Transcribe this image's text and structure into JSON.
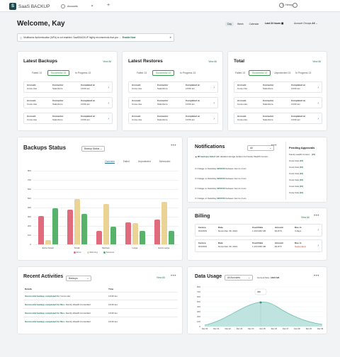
{
  "topbar": {
    "brand": "SaaS BACKUP",
    "logo_letter": "S",
    "tab": "Accounts",
    "tab_close": "×",
    "add_tab": "+",
    "user": "C. Henry"
  },
  "header": {
    "welcome": "Welcome, Kay",
    "range": [
      "Day",
      "Week",
      "Calendar"
    ],
    "range_active": "Day",
    "time": "Last 24 hours",
    "group_label": "Account Groups",
    "group_value": "All"
  },
  "alert": {
    "text": "Multifactor Authentication (MFA) is not enabled. SaaSBACKUP highly recommends that you ...",
    "link": "Enable Now"
  },
  "backups": {
    "title": "Latest Backups",
    "view_all": "View All",
    "tabs": [
      "Failed 13",
      "Successful 13",
      "In Progress 13"
    ],
    "rows": [
      {
        "a_label": "Account",
        "a_val": "Coca-cola",
        "c_label": "Connector",
        "c_val": "Salesforce",
        "t_label": "Completed at",
        "t_val": "10:00 am"
      },
      {
        "a_label": "Account",
        "a_val": "Coca-cola",
        "c_label": "Connector",
        "c_val": "Salesforce",
        "t_label": "Completed at",
        "t_val": "10:00 am"
      },
      {
        "a_label": "Account",
        "a_val": "Coca-cola",
        "c_label": "Connector",
        "c_val": "Salesforce",
        "t_label": "Completed at",
        "t_val": "10:00 am"
      }
    ]
  },
  "restores": {
    "title": "Latest Restores",
    "view_all": "View All",
    "tabs": [
      "Failed 13",
      "Successful 13",
      "In Progress 13"
    ],
    "rows": [
      {
        "a_label": "Account",
        "a_val": "Coca-cola",
        "c_label": "Connector",
        "c_val": "Salesforce",
        "t_label": "Completed at",
        "t_val": "10:00 am"
      },
      {
        "a_label": "Account",
        "a_val": "Coca-cola",
        "c_label": "Connector",
        "c_val": "Salesforce",
        "t_label": "Completed at",
        "t_val": "10:00 am"
      },
      {
        "a_label": "Account",
        "a_val": "Coca-cola",
        "c_label": "Connector",
        "c_val": "Salesforce",
        "t_label": "Completed at",
        "t_val": "10:00 am"
      }
    ]
  },
  "total": {
    "title": "Total",
    "view_all": "View All",
    "tabs": [
      "Failed 13",
      "Successful 13",
      "Unprotected 13",
      "In Progress 13"
    ],
    "rows": [
      {
        "a_label": "Account",
        "a_val": "Coca-cola",
        "c_label": "Connector",
        "c_val": "Salesforce",
        "t_label": "Completed at",
        "t_val": "10:00 am"
      },
      {
        "a_label": "Account",
        "a_val": "Coca-cola",
        "c_label": "Connector",
        "c_val": "Salesforce",
        "t_label": "Completed at",
        "t_val": "10:00 am"
      },
      {
        "a_label": "Account",
        "a_val": "Coca-cola",
        "c_label": "Connector",
        "c_val": "Salesforce",
        "t_label": "Completed at",
        "t_val": "10:00 am"
      }
    ]
  },
  "status": {
    "title": "Backups Status",
    "select": "Backup Status",
    "tabs": [
      "Overview",
      "Failed",
      "Unprotected",
      "Scheduled"
    ],
    "more": "•••"
  },
  "chart_data": {
    "type": "bar",
    "categories": [
      "Extra Small",
      "Small",
      "Medium",
      "Large",
      "Extra Large"
    ],
    "series": [
      {
        "name": "Error",
        "color": "#e06b7d",
        "values": [
          310,
          380,
          145,
          235,
          270
        ]
      },
      {
        "name": "Warning",
        "color": "#ead394",
        "values": [
          50,
          490,
          440,
          230,
          460
        ]
      },
      {
        "name": "Success",
        "color": "#58b36a",
        "values": [
          395,
          330,
          190,
          150,
          145
        ]
      }
    ],
    "ylim": [
      0,
      800
    ],
    "yticks": [
      0,
      100,
      200,
      300,
      400,
      500,
      600,
      700,
      800
    ],
    "legend": "bottom",
    "grid": true
  },
  "notifications": {
    "title": "Notifications",
    "select": "All",
    "more": "•••",
    "items": [
      {
        "bold": "88 backups failed",
        "text": " with detailed storage location for Family Wealth Consul..."
      },
      {
        "pre": "Outage on Saturday ",
        "bold": "02/07/23",
        "text": " between 1am to 3 am"
      },
      {
        "pre": "Outage on Saturday ",
        "bold": "02/07/23",
        "text": " between 1am to 3 am"
      },
      {
        "pre": "Outage on Saturday ",
        "bold": "02/07/23",
        "text": " between 1am to 3 am"
      },
      {
        "pre": "Outage on Saturday ",
        "bold": "02/07/23",
        "text": " between 1am to 3 am"
      }
    ]
  },
  "pending": {
    "title": "Pending Approvals",
    "items": [
      {
        "name": "Family wealth Consul...",
        "count": "(10)"
      },
      {
        "name": "Coca Cola",
        "count": "(10)"
      },
      {
        "name": "Coca Cola",
        "count": "(10)"
      },
      {
        "name": "Coca Cola",
        "count": "(10)"
      },
      {
        "name": "Coca Cola",
        "count": "(10)"
      },
      {
        "name": "Coca Cola",
        "count": "(10)"
      },
      {
        "name": "Coca Cola",
        "count": "(10)"
      }
    ]
  },
  "billing": {
    "title": "Billing",
    "view_all": "View All",
    "more": "•••",
    "rows": [
      {
        "inv_l": "Invoice",
        "inv": "#143919",
        "date_l": "Date",
        "date": "November 30, 2021",
        "paid_l": "Used Data",
        "paid": "1,234,930 GB",
        "amt_l": "Amount",
        "amt": "$1,873",
        "due_l": "Due in",
        "due": "3 days",
        "due_color": "#333"
      },
      {
        "inv_l": "Invoice",
        "inv": "#143919",
        "date_l": "Date",
        "date": "November 30, 2021",
        "paid_l": "Used Data",
        "paid": "1,234,930 GB",
        "amt_l": "Amount",
        "amt": "$1,873",
        "due_l": "Due in",
        "due": "Suspended",
        "due_color": "#c0392b"
      }
    ]
  },
  "activities": {
    "title": "Recent Activities",
    "select": "Backups",
    "view_all": "View All",
    "more": "•••",
    "col_details": "Details",
    "col_time": "Time",
    "rows": [
      {
        "link": "Successful backup completed for",
        "rest": " Coca cola",
        "time": "10:40 am"
      },
      {
        "link": "Successful backup completed for Bus.",
        "rest": " Family Wealth Consultant",
        "time": "10:40 am"
      },
      {
        "link": "Successful backup completed for Bus.",
        "rest": " Family Wealth Consultant",
        "time": "10:40 am"
      },
      {
        "link": "Successful backup completed for Bus.",
        "rest": " Family Wealth Consultant",
        "time": "10:40 am"
      }
    ]
  },
  "usage": {
    "title": "Data Usage",
    "select": "All Accounts",
    "current_label": "Current Size:",
    "current_val": "1300 GB",
    "more": "•••",
    "tooltip": "380",
    "yticks": [
      "0",
      "100",
      "200",
      "300",
      "400",
      "500",
      "600",
      "700",
      "800"
    ],
    "xticks": [
      "Dec 20",
      "Dec 21",
      "Dec 22",
      "Dec 23",
      "Dec 24",
      "Dec 25",
      "Dec 26",
      "Dec 27",
      "Dec 28",
      "Dec 29",
      "Dec 30"
    ]
  }
}
